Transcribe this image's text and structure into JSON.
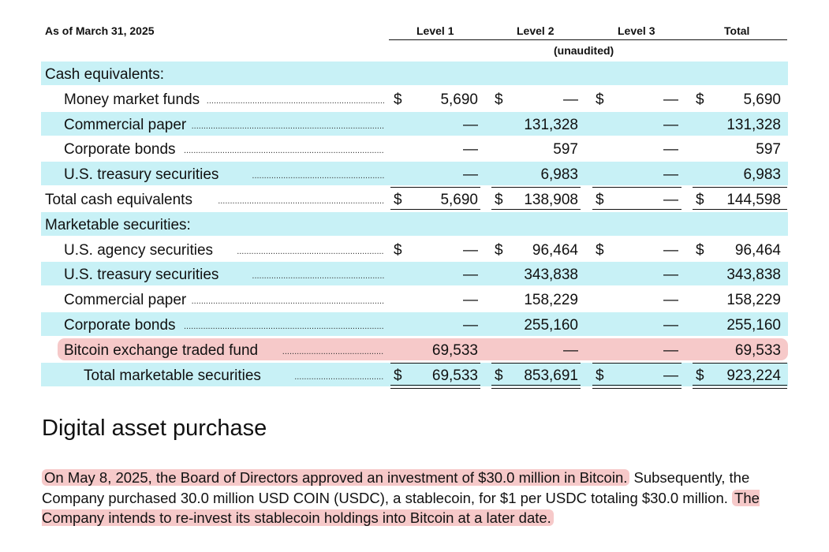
{
  "table": {
    "as_of": "As of March 31, 2025",
    "col_level1": "Level 1",
    "col_level2": "Level 2",
    "col_level3": "Level 3",
    "col_total": "Total",
    "unaudited": "(unaudited)",
    "rows": [
      {
        "label": "Cash equivalents:",
        "indent": 0,
        "cyan": true,
        "header": true
      },
      {
        "label": "Money market funds",
        "indent": 1,
        "cyan": false,
        "l1": "5,690",
        "l2": "—",
        "l3": "—",
        "total": "5,690",
        "dollar": [
          true,
          true,
          true,
          true
        ]
      },
      {
        "label": "Commercial paper",
        "indent": 1,
        "cyan": true,
        "l1": "—",
        "l2": "131,328",
        "l3": "—",
        "total": "131,328"
      },
      {
        "label": "Corporate bonds",
        "indent": 1,
        "cyan": false,
        "l1": "—",
        "l2": "597",
        "l3": "—",
        "total": "597"
      },
      {
        "label": "U.S. treasury securities",
        "indent": 1,
        "cyan": true,
        "l1": "—",
        "l2": "6,983",
        "l3": "—",
        "total": "6,983"
      },
      {
        "label": "Total cash equivalents",
        "indent": 0,
        "cyan": false,
        "l1": "5,690",
        "l2": "138,908",
        "l3": "—",
        "total": "144,598",
        "dollar": [
          true,
          true,
          true,
          true
        ],
        "total_row": true
      },
      {
        "label": "Marketable securities:",
        "indent": 0,
        "cyan": true,
        "header": true
      },
      {
        "label": "U.S. agency securities",
        "indent": 1,
        "cyan": false,
        "l1": "—",
        "l2": "96,464",
        "l3": "—",
        "total": "96,464",
        "dollar": [
          true,
          true,
          true,
          true
        ]
      },
      {
        "label": "U.S. treasury securities",
        "indent": 1,
        "cyan": true,
        "l1": "—",
        "l2": "343,838",
        "l3": "—",
        "total": "343,838"
      },
      {
        "label": "Commercial paper",
        "indent": 1,
        "cyan": false,
        "l1": "—",
        "l2": "158,229",
        "l3": "—",
        "total": "158,229"
      },
      {
        "label": "Corporate bonds",
        "indent": 1,
        "cyan": true,
        "l1": "—",
        "l2": "255,160",
        "l3": "—",
        "total": "255,160"
      },
      {
        "label": "Bitcoin exchange traded fund",
        "indent": 1,
        "cyan": false,
        "l1": "69,533",
        "l2": "—",
        "l3": "—",
        "total": "69,533",
        "highlight": true
      },
      {
        "label": "Total marketable securities",
        "indent": 2,
        "cyan": true,
        "l1": "69,533",
        "l2": "853,691",
        "l3": "—",
        "total": "923,224",
        "dollar": [
          true,
          true,
          true,
          true
        ],
        "total_row": true
      }
    ]
  },
  "section": {
    "title": "Digital asset purchase",
    "para_hl1": "On May 8, 2025, the Board of Directors approved an investment of $30.0 million in Bitcoin.",
    "para_mid": " Subsequently, the Company purchased 30.0 million USD COIN (USDC), a stablecoin, for $1 per USDC totaling $30.0 million. ",
    "para_hl2": "The Company intends to re-invest its stablecoin holdings into Bitcoin at a later date."
  },
  "colors": {
    "row_cyan": "#c8f1f6",
    "highlight_pink": "#f6c9c9"
  }
}
